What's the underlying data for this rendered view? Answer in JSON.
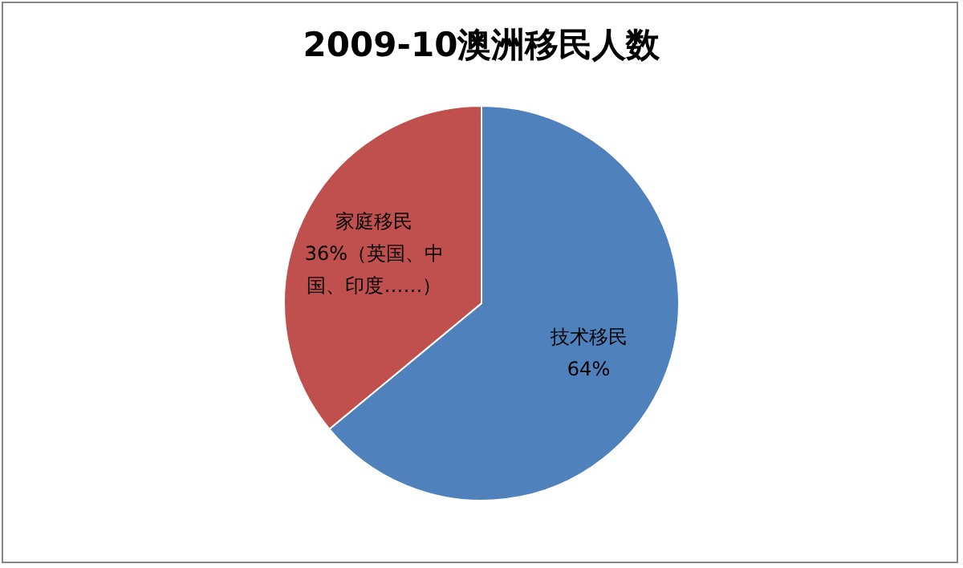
{
  "chart_data": {
    "type": "pie",
    "title": "2009-10澳洲移民人数",
    "categories": [
      "技术移民",
      "家庭移民"
    ],
    "values": [
      64,
      36
    ],
    "value_labels": [
      "64%",
      "36%"
    ],
    "colors": [
      "#4f81bd",
      "#c0504d"
    ],
    "annotations": [
      "（英国、中国、印度……）"
    ]
  }
}
